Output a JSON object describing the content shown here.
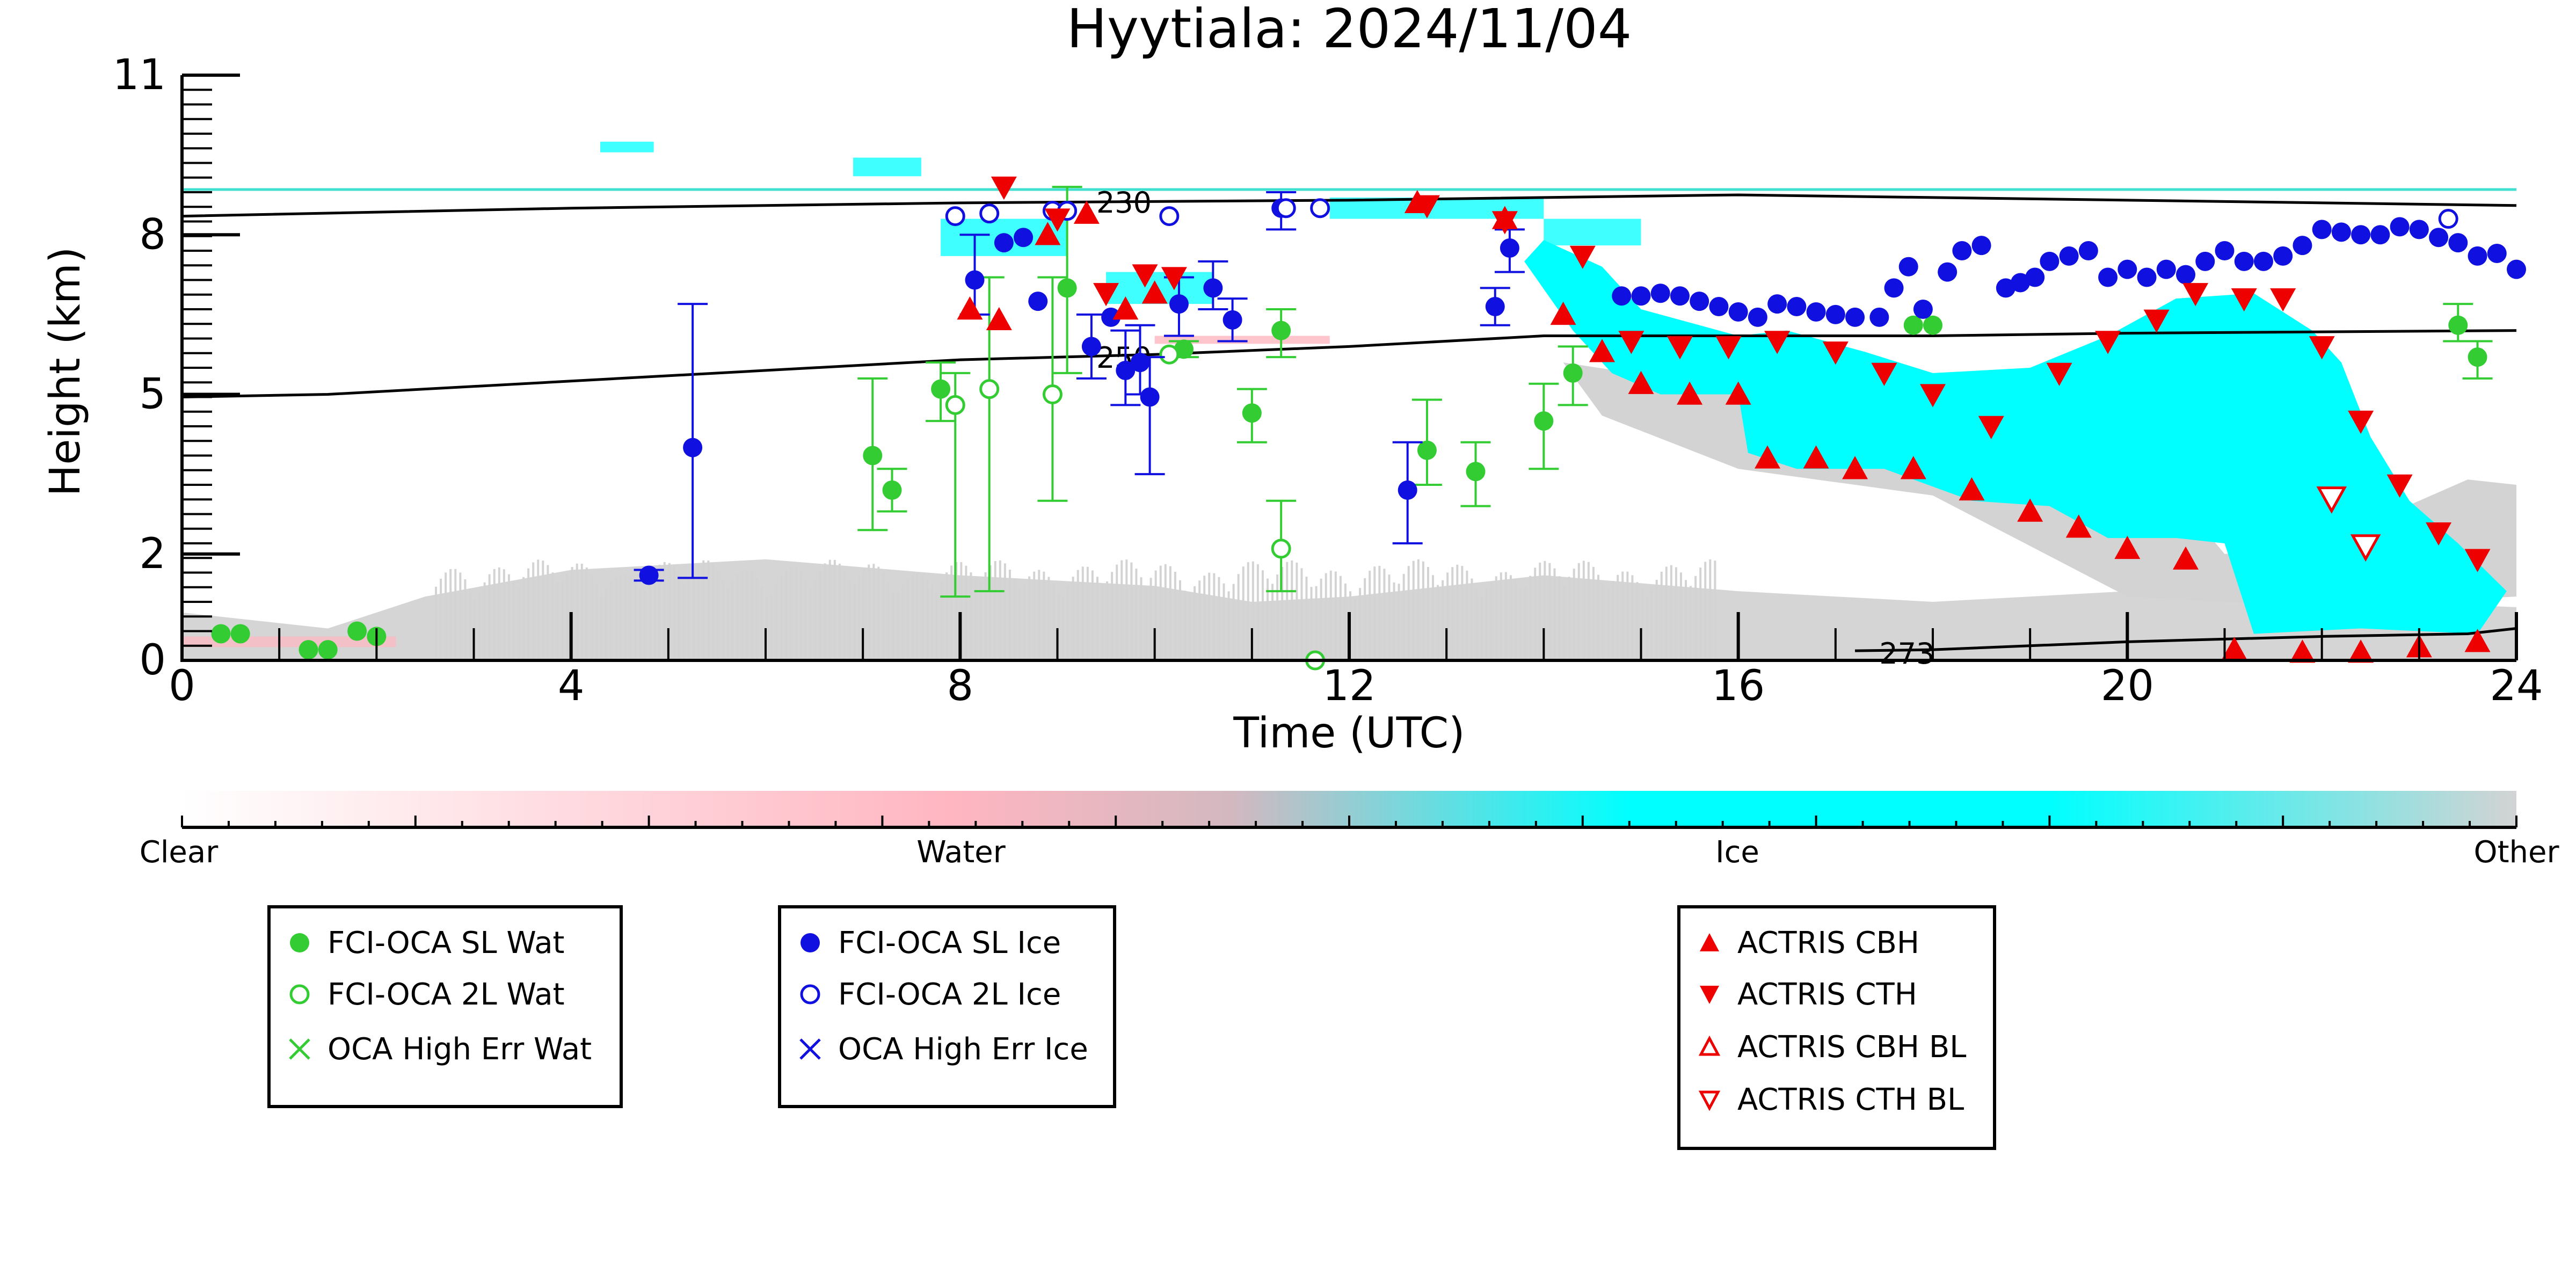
{
  "chart_data": {
    "type": "scatter",
    "title": "Hyytiala: 2024/11/04",
    "xlabel": "Time (UTC)",
    "ylabel": "Height (km)",
    "xlim": [
      0,
      24
    ],
    "ylim": [
      0,
      11
    ],
    "x_ticks": [
      0,
      4,
      8,
      12,
      16,
      20,
      24
    ],
    "y_ticks": [
      0,
      2,
      5,
      8,
      11
    ],
    "y_tick_labels": [
      "0",
      "2",
      "5",
      "8",
      "11"
    ],
    "grid": false,
    "background": "cloud classification curtain (Clear / Water / Ice / Other)",
    "colorbar": {
      "labels": [
        "Clear",
        "Water",
        "Ice",
        "Other"
      ],
      "colors": [
        "#ffffff",
        "#ffb6c1",
        "#00ffff",
        "#d3d3d3"
      ]
    },
    "contours": [
      {
        "label": "230",
        "values": [
          [
            0,
            8.35
          ],
          [
            4,
            8.5
          ],
          [
            8,
            8.6
          ],
          [
            12,
            8.65
          ],
          [
            16,
            8.75
          ],
          [
            20,
            8.65
          ],
          [
            24,
            8.55
          ]
        ]
      },
      {
        "label": "250",
        "values": [
          [
            0,
            4.95
          ],
          [
            1.5,
            5.0
          ],
          [
            4,
            5.25
          ],
          [
            8,
            5.65
          ],
          [
            10,
            5.75
          ],
          [
            12,
            5.9
          ],
          [
            14,
            6.1
          ],
          [
            16,
            6.1
          ],
          [
            18,
            6.1
          ],
          [
            20,
            6.15
          ],
          [
            24,
            6.2
          ]
        ]
      },
      {
        "label": "273",
        "values": [
          [
            17.2,
            0.18
          ],
          [
            18,
            0.2
          ],
          [
            20,
            0.35
          ],
          [
            22,
            0.45
          ],
          [
            23.5,
            0.5
          ],
          [
            24,
            0.6
          ]
        ]
      }
    ],
    "hline": {
      "y": 8.85,
      "color": "#40e0d0"
    },
    "series": [
      {
        "name": "FCI-OCA SL Wat",
        "color": "#33cc33",
        "marker": "filled-circle",
        "points": [
          {
            "x": 0.4,
            "y": 0.5
          },
          {
            "x": 0.6,
            "y": 0.5
          },
          {
            "x": 1.3,
            "y": 0.2
          },
          {
            "x": 1.5,
            "y": 0.2
          },
          {
            "x": 1.8,
            "y": 0.55
          },
          {
            "x": 2.0,
            "y": 0.45
          },
          {
            "x": 7.1,
            "y": 3.85,
            "lo": 2.45,
            "hi": 5.3
          },
          {
            "x": 7.3,
            "y": 3.2,
            "lo": 2.8,
            "hi": 3.6
          },
          {
            "x": 7.8,
            "y": 5.1,
            "lo": 4.5,
            "hi": 5.6
          },
          {
            "x": 9.1,
            "y": 7.0,
            "lo": 5.4,
            "hi": 8.9
          },
          {
            "x": 10.3,
            "y": 5.85,
            "lo": 5.7,
            "hi": 6.0
          },
          {
            "x": 11.0,
            "y": 4.65,
            "lo": 4.1,
            "hi": 5.1
          },
          {
            "x": 11.3,
            "y": 6.2,
            "lo": 5.7,
            "hi": 6.6
          },
          {
            "x": 12.8,
            "y": 3.95,
            "lo": 3.3,
            "hi": 4.9
          },
          {
            "x": 13.3,
            "y": 3.55,
            "lo": 2.9,
            "hi": 4.1
          },
          {
            "x": 14.0,
            "y": 4.5,
            "lo": 3.6,
            "hi": 5.2
          },
          {
            "x": 14.3,
            "y": 5.4,
            "lo": 4.8,
            "hi": 5.9
          },
          {
            "x": 17.8,
            "y": 6.3
          },
          {
            "x": 18.0,
            "y": 6.3
          },
          {
            "x": 23.4,
            "y": 6.3,
            "lo": 6.0,
            "hi": 6.7
          },
          {
            "x": 23.6,
            "y": 5.7,
            "lo": 5.3,
            "hi": 6.0
          }
        ]
      },
      {
        "name": "FCI-OCA 2L Wat",
        "color": "#33cc33",
        "marker": "open-circle",
        "points": [
          {
            "x": 7.95,
            "y": 4.8,
            "lo": 1.2,
            "hi": 5.4
          },
          {
            "x": 8.3,
            "y": 5.1,
            "lo": 1.3,
            "hi": 7.2
          },
          {
            "x": 8.95,
            "y": 5.0,
            "lo": 3.0,
            "hi": 7.2
          },
          {
            "x": 10.15,
            "y": 5.75
          },
          {
            "x": 11.3,
            "y": 2.1,
            "lo": 1.3,
            "hi": 3.0
          },
          {
            "x": 11.65,
            "y": 0.0
          }
        ]
      },
      {
        "name": "OCA High Err Wat",
        "color": "#33cc33",
        "marker": "x",
        "points": []
      },
      {
        "name": "FCI-OCA SL Ice",
        "color": "#1010e0",
        "marker": "filled-circle",
        "points": [
          {
            "x": 4.8,
            "y": 1.6,
            "lo": 1.5,
            "hi": 1.7
          },
          {
            "x": 5.25,
            "y": 4.0,
            "lo": 1.55,
            "hi": 6.7
          },
          {
            "x": 8.15,
            "y": 7.15,
            "lo": 6.5,
            "hi": 8.0
          },
          {
            "x": 8.45,
            "y": 7.85
          },
          {
            "x": 8.65,
            "y": 7.95
          },
          {
            "x": 8.8,
            "y": 6.75
          },
          {
            "x": 9.35,
            "y": 5.9,
            "lo": 5.3,
            "hi": 6.5
          },
          {
            "x": 9.55,
            "y": 6.45
          },
          {
            "x": 9.7,
            "y": 5.45,
            "lo": 4.8,
            "hi": 6.2
          },
          {
            "x": 9.85,
            "y": 5.6,
            "lo": 5.0,
            "hi": 6.3
          },
          {
            "x": 9.95,
            "y": 4.95,
            "lo": 3.5,
            "hi": 5.7
          },
          {
            "x": 10.25,
            "y": 6.7,
            "lo": 6.1,
            "hi": 7.2
          },
          {
            "x": 10.6,
            "y": 7.0,
            "lo": 6.6,
            "hi": 7.5
          },
          {
            "x": 10.8,
            "y": 6.4,
            "lo": 6.0,
            "hi": 6.8
          },
          {
            "x": 11.3,
            "y": 8.5,
            "lo": 8.1,
            "hi": 8.8
          },
          {
            "x": 12.6,
            "y": 3.2,
            "lo": 2.2,
            "hi": 4.1
          },
          {
            "x": 13.5,
            "y": 6.65,
            "lo": 6.3,
            "hi": 7.0
          },
          {
            "x": 13.65,
            "y": 7.75,
            "lo": 7.3,
            "hi": 8.1
          },
          {
            "x": 14.8,
            "y": 6.85
          },
          {
            "x": 15.0,
            "y": 6.85
          },
          {
            "x": 15.2,
            "y": 6.9
          },
          {
            "x": 15.4,
            "y": 6.85
          },
          {
            "x": 15.6,
            "y": 6.75
          },
          {
            "x": 15.8,
            "y": 6.65
          },
          {
            "x": 16.0,
            "y": 6.55
          },
          {
            "x": 16.2,
            "y": 6.45
          },
          {
            "x": 16.4,
            "y": 6.7
          },
          {
            "x": 16.6,
            "y": 6.65
          },
          {
            "x": 16.8,
            "y": 6.55
          },
          {
            "x": 17.0,
            "y": 6.5
          },
          {
            "x": 17.2,
            "y": 6.45
          },
          {
            "x": 17.45,
            "y": 6.45
          },
          {
            "x": 17.6,
            "y": 7.0
          },
          {
            "x": 17.75,
            "y": 7.4
          },
          {
            "x": 17.9,
            "y": 6.6
          },
          {
            "x": 18.15,
            "y": 7.3
          },
          {
            "x": 18.3,
            "y": 7.7
          },
          {
            "x": 18.5,
            "y": 7.8
          },
          {
            "x": 18.75,
            "y": 7.0
          },
          {
            "x": 18.9,
            "y": 7.1
          },
          {
            "x": 19.05,
            "y": 7.2
          },
          {
            "x": 19.2,
            "y": 7.5
          },
          {
            "x": 19.4,
            "y": 7.6
          },
          {
            "x": 19.6,
            "y": 7.7
          },
          {
            "x": 19.8,
            "y": 7.2
          },
          {
            "x": 20.0,
            "y": 7.35
          },
          {
            "x": 20.2,
            "y": 7.2
          },
          {
            "x": 20.4,
            "y": 7.35
          },
          {
            "x": 20.6,
            "y": 7.25
          },
          {
            "x": 20.8,
            "y": 7.5
          },
          {
            "x": 21.0,
            "y": 7.7
          },
          {
            "x": 21.2,
            "y": 7.5
          },
          {
            "x": 21.4,
            "y": 7.5
          },
          {
            "x": 21.6,
            "y": 7.6
          },
          {
            "x": 21.8,
            "y": 7.8
          },
          {
            "x": 22.0,
            "y": 8.1
          },
          {
            "x": 22.2,
            "y": 8.05
          },
          {
            "x": 22.4,
            "y": 8.0
          },
          {
            "x": 22.6,
            "y": 8.0
          },
          {
            "x": 22.8,
            "y": 8.15
          },
          {
            "x": 23.0,
            "y": 8.1
          },
          {
            "x": 23.2,
            "y": 7.95
          },
          {
            "x": 23.4,
            "y": 7.85
          },
          {
            "x": 23.6,
            "y": 7.6
          },
          {
            "x": 23.8,
            "y": 7.65
          },
          {
            "x": 24.0,
            "y": 7.35
          }
        ]
      },
      {
        "name": "FCI-OCA 2L Ice",
        "color": "#1010e0",
        "marker": "open-circle",
        "points": [
          {
            "x": 7.95,
            "y": 8.35
          },
          {
            "x": 8.3,
            "y": 8.4
          },
          {
            "x": 8.95,
            "y": 8.45
          },
          {
            "x": 9.1,
            "y": 8.45
          },
          {
            "x": 10.15,
            "y": 8.35
          },
          {
            "x": 11.35,
            "y": 8.5
          },
          {
            "x": 11.7,
            "y": 8.5
          },
          {
            "x": 23.3,
            "y": 8.3
          }
        ]
      },
      {
        "name": "OCA High Err Ice",
        "color": "#1010e0",
        "marker": "x",
        "points": []
      },
      {
        "name": "ACTRIS CBH",
        "color": "#ee0000",
        "marker": "triangle-up",
        "points": [
          {
            "x": 8.1,
            "y": 6.6
          },
          {
            "x": 8.4,
            "y": 6.4
          },
          {
            "x": 8.9,
            "y": 8.0
          },
          {
            "x": 9.3,
            "y": 8.4
          },
          {
            "x": 9.7,
            "y": 6.6
          },
          {
            "x": 10.0,
            "y": 6.9
          },
          {
            "x": 12.7,
            "y": 8.6
          },
          {
            "x": 13.6,
            "y": 8.3
          },
          {
            "x": 14.2,
            "y": 6.5
          },
          {
            "x": 14.6,
            "y": 5.8
          },
          {
            "x": 15.0,
            "y": 5.2
          },
          {
            "x": 15.5,
            "y": 5.0
          },
          {
            "x": 16.0,
            "y": 5.0
          },
          {
            "x": 16.3,
            "y": 3.8
          },
          {
            "x": 16.8,
            "y": 3.8
          },
          {
            "x": 17.2,
            "y": 3.6
          },
          {
            "x": 17.8,
            "y": 3.6
          },
          {
            "x": 18.4,
            "y": 3.2
          },
          {
            "x": 19.0,
            "y": 2.8
          },
          {
            "x": 19.5,
            "y": 2.5
          },
          {
            "x": 20.0,
            "y": 2.1
          },
          {
            "x": 20.6,
            "y": 1.9
          },
          {
            "x": 21.1,
            "y": 0.2
          },
          {
            "x": 21.8,
            "y": 0.15
          },
          {
            "x": 22.4,
            "y": 0.15
          },
          {
            "x": 23.0,
            "y": 0.25
          },
          {
            "x": 23.6,
            "y": 0.35
          }
        ]
      },
      {
        "name": "ACTRIS CTH",
        "color": "#ee0000",
        "marker": "triangle-down",
        "points": [
          {
            "x": 8.45,
            "y": 8.9
          },
          {
            "x": 9.0,
            "y": 8.3
          },
          {
            "x": 9.5,
            "y": 6.9
          },
          {
            "x": 9.9,
            "y": 7.25
          },
          {
            "x": 10.2,
            "y": 7.2
          },
          {
            "x": 12.8,
            "y": 8.55
          },
          {
            "x": 13.6,
            "y": 8.25
          },
          {
            "x": 14.4,
            "y": 7.6
          },
          {
            "x": 14.9,
            "y": 6.0
          },
          {
            "x": 15.4,
            "y": 5.9
          },
          {
            "x": 15.9,
            "y": 5.9
          },
          {
            "x": 16.4,
            "y": 6.0
          },
          {
            "x": 17.0,
            "y": 5.8
          },
          {
            "x": 17.5,
            "y": 5.4
          },
          {
            "x": 18.0,
            "y": 5.0
          },
          {
            "x": 18.6,
            "y": 4.4
          },
          {
            "x": 19.3,
            "y": 5.4
          },
          {
            "x": 19.8,
            "y": 6.0
          },
          {
            "x": 20.3,
            "y": 6.4
          },
          {
            "x": 20.7,
            "y": 6.9
          },
          {
            "x": 21.2,
            "y": 6.8
          },
          {
            "x": 21.6,
            "y": 6.8
          },
          {
            "x": 22.0,
            "y": 5.9
          },
          {
            "x": 22.4,
            "y": 4.5
          },
          {
            "x": 22.8,
            "y": 3.3
          },
          {
            "x": 23.2,
            "y": 2.4
          },
          {
            "x": 23.6,
            "y": 1.9
          }
        ]
      },
      {
        "name": "ACTRIS CBH BL",
        "color": "#ee0000",
        "marker": "open-triangle-up",
        "points": []
      },
      {
        "name": "ACTRIS CTH BL",
        "color": "#ee0000",
        "marker": "open-triangle-down",
        "points": [
          {
            "x": 22.1,
            "y": 3.05
          },
          {
            "x": 22.45,
            "y": 2.15
          }
        ]
      }
    ],
    "legends": [
      {
        "entries": [
          "FCI-OCA SL Wat",
          "FCI-OCA 2L Wat",
          "OCA High Err Wat"
        ]
      },
      {
        "entries": [
          "FCI-OCA SL Ice",
          "FCI-OCA 2L Ice",
          "OCA High Err Ice"
        ]
      },
      {
        "entries": [
          "ACTRIS CBH",
          "ACTRIS CTH",
          "ACTRIS CBH BL",
          "ACTRIS CTH BL"
        ]
      }
    ]
  }
}
